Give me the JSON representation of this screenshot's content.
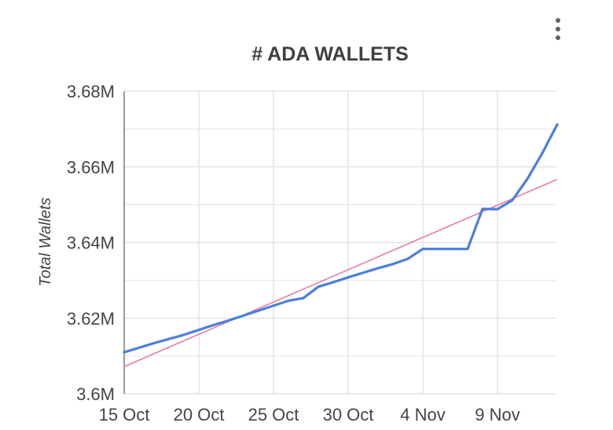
{
  "menu": {
    "icon": "more-vert-icon"
  },
  "chart_data": {
    "type": "line",
    "title": "# ADA WALLETS",
    "xlabel": "",
    "ylabel": "Total Wallets",
    "x_ticks": [
      "15 Oct",
      "20 Oct",
      "25 Oct",
      "30 Oct",
      "4 Nov",
      "9 Nov"
    ],
    "y_ticks": [
      "3.6M",
      "3.62M",
      "3.64M",
      "3.66M",
      "3.68M"
    ],
    "ylim": [
      3600000,
      3680000
    ],
    "xlim_days": [
      0,
      29
    ],
    "grid": true,
    "colors": {
      "series": "#4a7fdc",
      "trendline": "#e87ba2",
      "grid": "#e3e3e3",
      "axis": "#9a9a9a",
      "text": "#444444",
      "title": "#3c4043"
    },
    "series": [
      {
        "x": [
          "15 Oct",
          "16 Oct",
          "17 Oct",
          "18 Oct",
          "19 Oct",
          "20 Oct",
          "21 Oct",
          "22 Oct",
          "23 Oct",
          "24 Oct",
          "25 Oct",
          "26 Oct",
          "27 Oct",
          "28 Oct",
          "29 Oct",
          "30 Oct",
          "31 Oct",
          "1 Nov",
          "2 Nov",
          "3 Nov",
          "4 Nov",
          "5 Nov",
          "6 Nov",
          "7 Nov",
          "8 Nov",
          "9 Nov",
          "10 Nov",
          "11 Nov",
          "12 Nov",
          "13 Nov"
        ],
        "values": [
          3611000,
          3612200,
          3613400,
          3614500,
          3615600,
          3616900,
          3618200,
          3619400,
          3620700,
          3622000,
          3623300,
          3624600,
          3625300,
          3628300,
          3629500,
          3630800,
          3632000,
          3633200,
          3634300,
          3635700,
          3638300,
          3638300,
          3638300,
          3638300,
          3648900,
          3648800,
          3651200,
          3656800,
          3663600,
          3671200
        ]
      }
    ],
    "trendline": {
      "x": [
        "15 Oct",
        "13 Nov"
      ],
      "values": [
        3607200,
        3656700
      ]
    }
  }
}
